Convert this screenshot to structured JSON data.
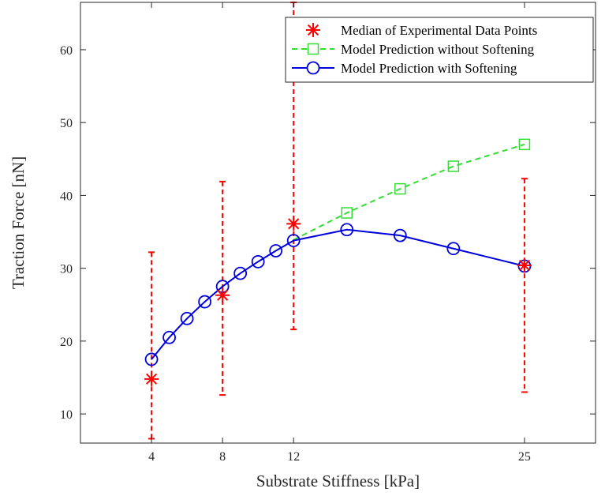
{
  "chart_data": {
    "type": "line",
    "xlabel": "Substrate Stiffness [kPa]",
    "ylabel": "Traction Force [nN]",
    "xlim": [
      0,
      29
    ],
    "ylim": [
      6,
      66.5
    ],
    "x_ticks": [
      4,
      8,
      12,
      25
    ],
    "y_ticks": [
      10,
      20,
      30,
      40,
      50,
      60
    ],
    "grid": false,
    "legend_position": "top-right",
    "series": [
      {
        "name": "Median of Experimental Data Points",
        "style": "markers",
        "marker": "asterisk",
        "color": "#ff0000",
        "points": [
          {
            "x": 4,
            "y": 14.8,
            "lower": 6.6,
            "upper": 32.2
          },
          {
            "x": 8,
            "y": 26.3,
            "lower": 12.6,
            "upper": 41.9
          },
          {
            "x": 12,
            "y": 36.1,
            "lower": 21.6,
            "upper": 66.5
          },
          {
            "x": 25,
            "y": 30.4,
            "lower": 13.0,
            "upper": 42.3
          }
        ]
      },
      {
        "name": "Model Prediction without Softening",
        "style": "dashed",
        "marker": "square",
        "color": "#33dd33",
        "x": [
          12,
          15,
          18,
          21,
          25
        ],
        "y": [
          33.9,
          37.6,
          40.9,
          44.0,
          47.0
        ]
      },
      {
        "name": "Model Prediction with Softening",
        "style": "solid",
        "marker": "circle",
        "color": "#0000dd",
        "x": [
          4,
          5,
          6,
          7,
          8,
          9,
          10,
          11,
          12,
          15,
          18,
          21,
          25
        ],
        "y": [
          17.5,
          20.5,
          23.1,
          25.4,
          27.5,
          29.3,
          30.9,
          32.4,
          33.8,
          35.3,
          34.5,
          32.7,
          30.3
        ]
      }
    ]
  }
}
